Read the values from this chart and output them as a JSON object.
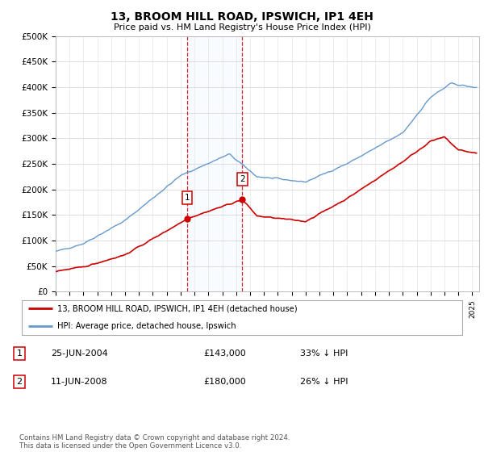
{
  "title": "13, BROOM HILL ROAD, IPSWICH, IP1 4EH",
  "subtitle": "Price paid vs. HM Land Registry's House Price Index (HPI)",
  "legend_line1": "13, BROOM HILL ROAD, IPSWICH, IP1 4EH (detached house)",
  "legend_line2": "HPI: Average price, detached house, Ipswich",
  "sale1_label": "1",
  "sale1_date": "25-JUN-2004",
  "sale1_price": "£143,000",
  "sale1_pct": "33% ↓ HPI",
  "sale2_label": "2",
  "sale2_date": "11-JUN-2008",
  "sale2_price": "£180,000",
  "sale2_pct": "26% ↓ HPI",
  "footnote": "Contains HM Land Registry data © Crown copyright and database right 2024.\nThis data is licensed under the Open Government Licence v3.0.",
  "hpi_color": "#6699cc",
  "price_color": "#cc0000",
  "sale_marker_color": "#cc0000",
  "shade_color": "#ddeeff",
  "vline_color": "#cc0000",
  "ylim": [
    0,
    500000
  ],
  "yticks": [
    0,
    50000,
    100000,
    150000,
    200000,
    250000,
    300000,
    350000,
    400000,
    450000,
    500000
  ],
  "ytick_labels": [
    "£0",
    "£50K",
    "£100K",
    "£150K",
    "£200K",
    "£250K",
    "£300K",
    "£350K",
    "£400K",
    "£450K",
    "£500K"
  ],
  "sale1_x": 2004.48,
  "sale1_y": 143000,
  "sale2_x": 2008.44,
  "sale2_y": 180000,
  "xlim_left": 1995,
  "xlim_right": 2025.5
}
